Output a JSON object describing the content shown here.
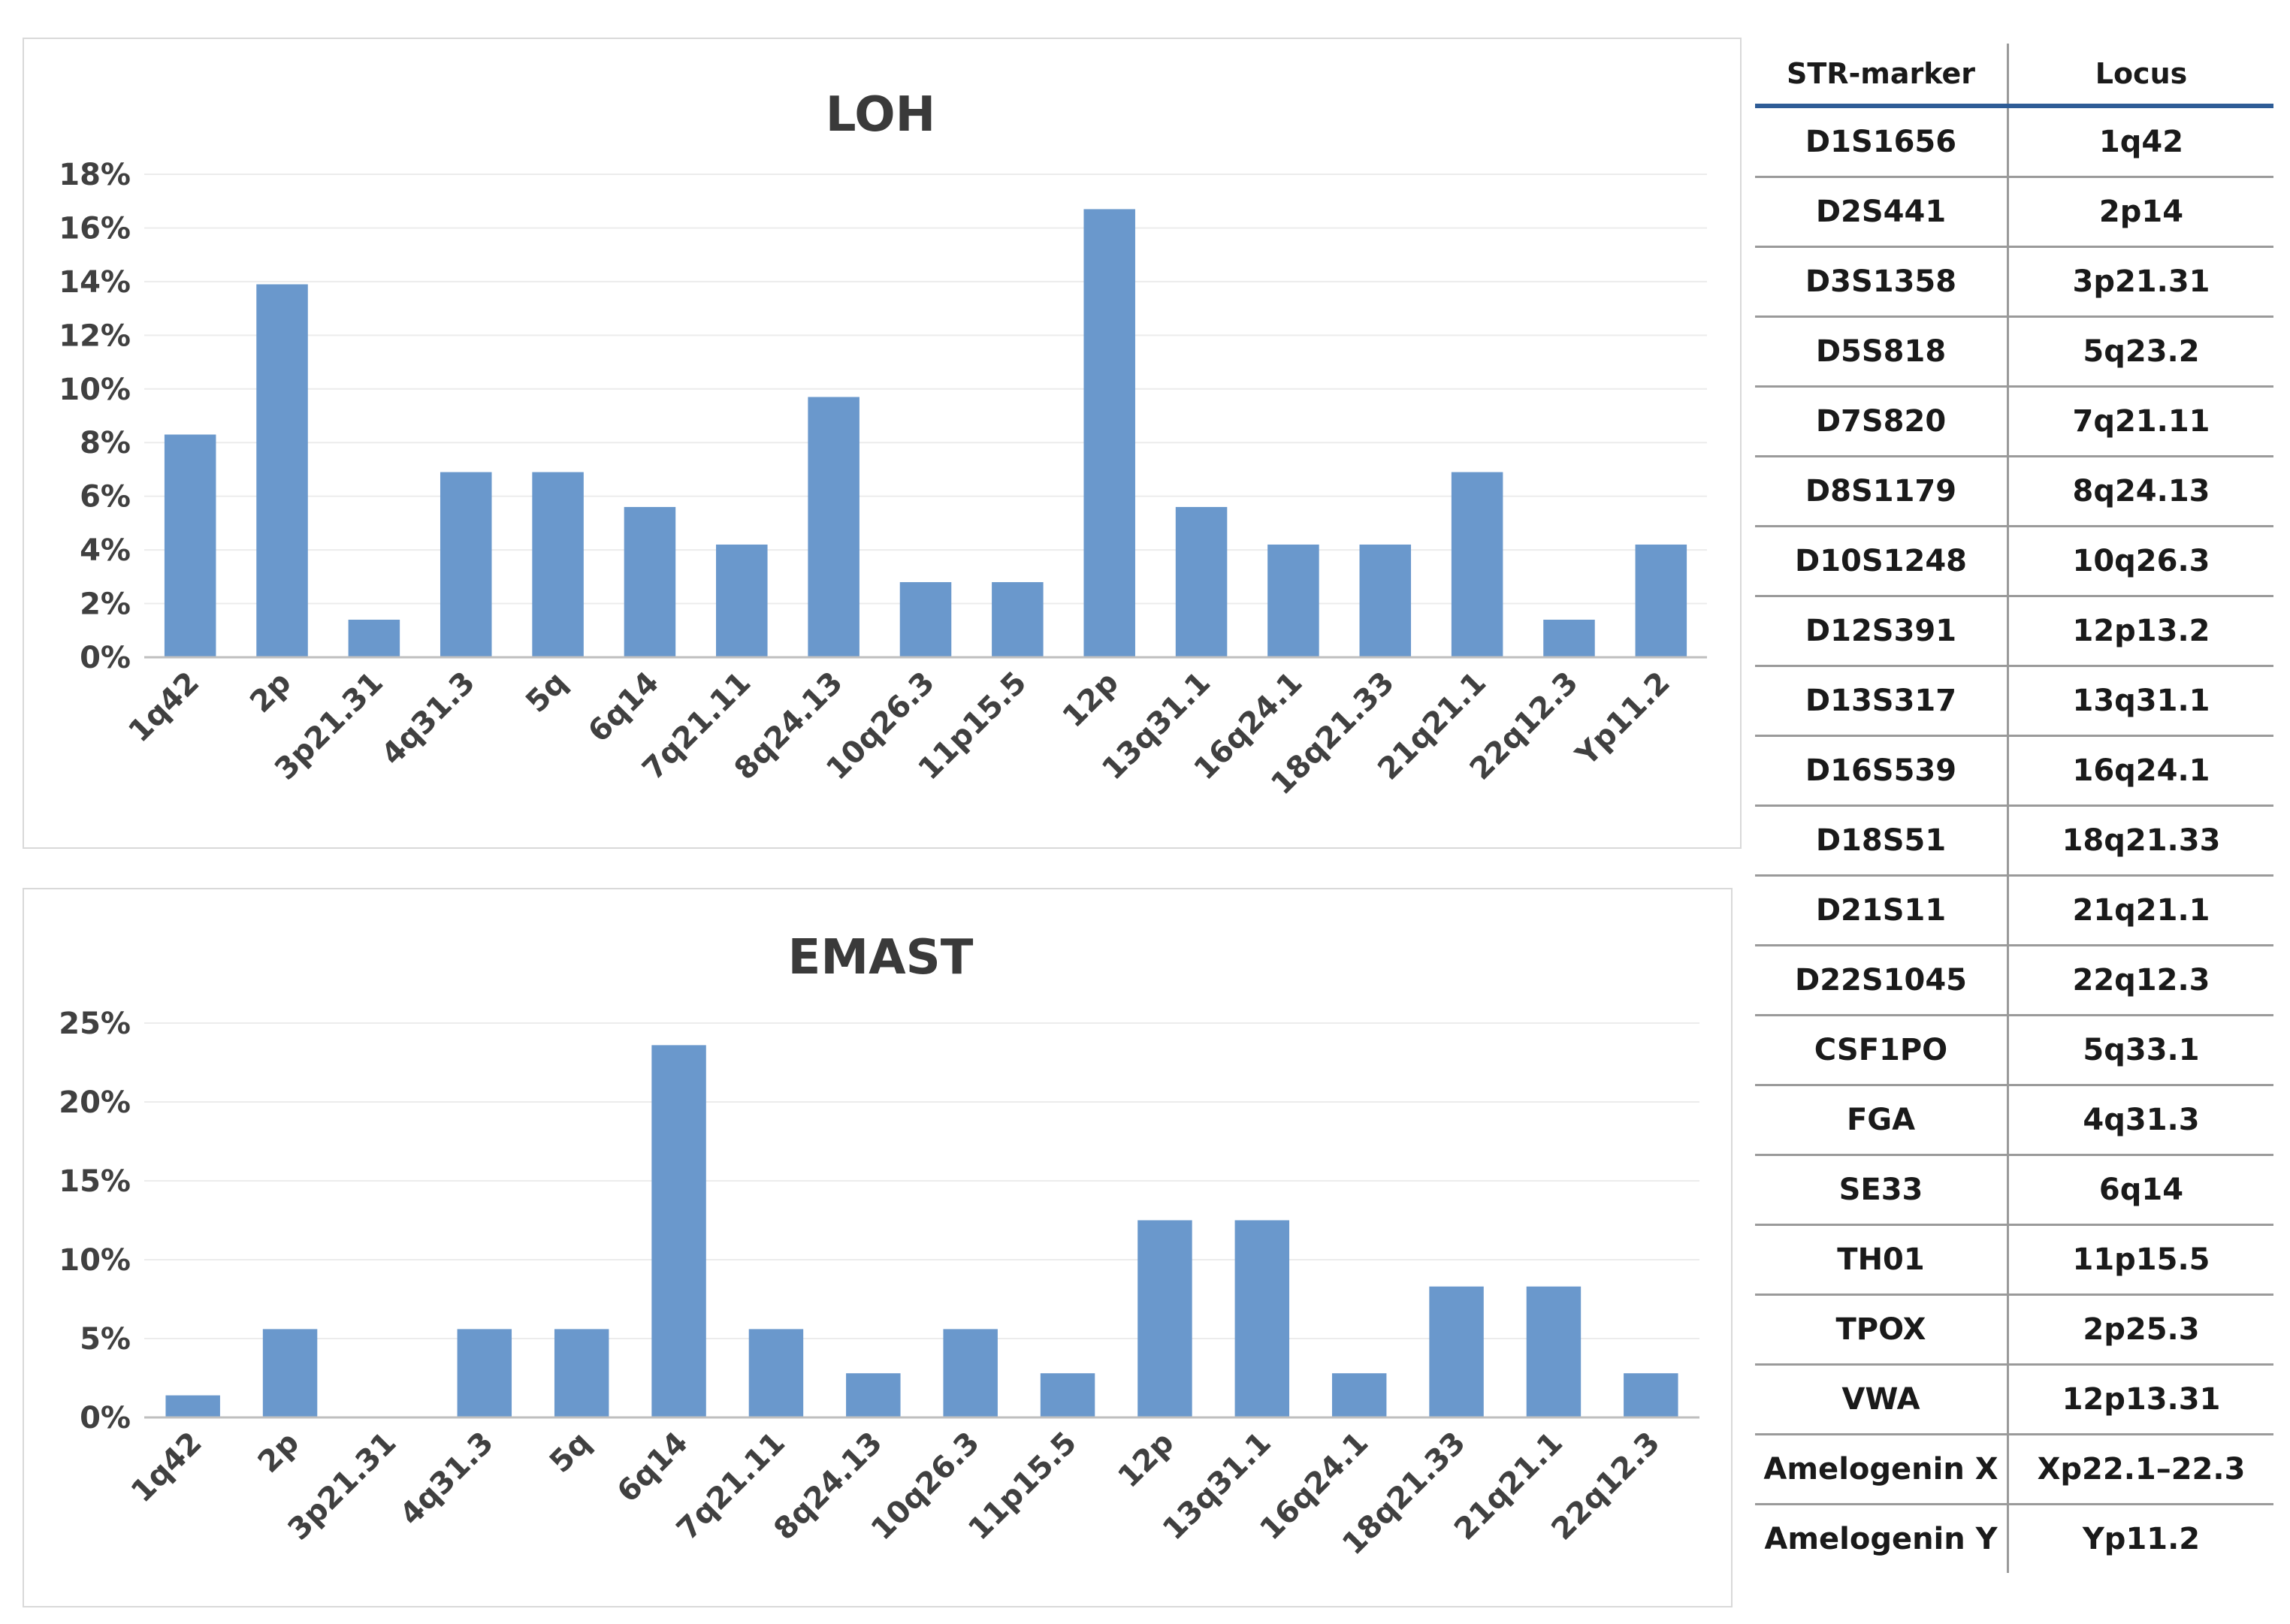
{
  "chart_data": [
    {
      "type": "bar",
      "title": "LOH",
      "xlabel": "",
      "ylabel": "",
      "ylim": [
        0,
        18
      ],
      "yticks": [
        0,
        2,
        4,
        6,
        8,
        10,
        12,
        14,
        16,
        18
      ],
      "ytick_labels": [
        "0%",
        "2%",
        "4%",
        "6%",
        "8%",
        "10%",
        "12%",
        "14%",
        "16%",
        "18%"
      ],
      "categories": [
        "1q42",
        "2p",
        "3p21.31",
        "4q31.3",
        "5q",
        "6q14",
        "7q21.11",
        "8q24.13",
        "10q26.3",
        "11p15.5",
        "12p",
        "13q31.1",
        "16q24.1",
        "18q21.33",
        "21q21.1",
        "22q12.3",
        "Yp11.2"
      ],
      "values": [
        8.3,
        13.9,
        1.4,
        6.9,
        6.9,
        5.6,
        4.2,
        9.7,
        2.8,
        2.8,
        16.7,
        5.6,
        4.2,
        4.2,
        6.9,
        1.4,
        4.2
      ],
      "unit": "%",
      "grid": true,
      "bar_color": "#6a98cc"
    },
    {
      "type": "bar",
      "title": "EMAST",
      "xlabel": "",
      "ylabel": "",
      "ylim": [
        0,
        25
      ],
      "yticks": [
        0,
        5,
        10,
        15,
        20,
        25
      ],
      "ytick_labels": [
        "0%",
        "5%",
        "10%",
        "15%",
        "20%",
        "25%"
      ],
      "categories": [
        "1q42",
        "2p",
        "3p21.31",
        "4q31.3",
        "5q",
        "6q14",
        "7q21.11",
        "8q24.13",
        "10q26.3",
        "11p15.5",
        "12p",
        "13q31.1",
        "16q24.1",
        "18q21.33",
        "21q21.1",
        "22q12.3"
      ],
      "values": [
        1.4,
        5.6,
        0,
        5.6,
        5.6,
        23.6,
        5.6,
        2.8,
        5.6,
        2.8,
        12.5,
        12.5,
        2.8,
        8.3,
        8.3,
        2.8
      ],
      "unit": "%",
      "grid": true,
      "bar_color": "#6a98cc"
    }
  ],
  "table": {
    "headers": [
      "STR-marker",
      "Locus"
    ],
    "rows": [
      [
        "D1S1656",
        "1q42"
      ],
      [
        "D2S441",
        "2p14"
      ],
      [
        "D3S1358",
        "3p21.31"
      ],
      [
        "D5S818",
        "5q23.2"
      ],
      [
        "D7S820",
        "7q21.11"
      ],
      [
        "D8S1179",
        "8q24.13"
      ],
      [
        "D10S1248",
        "10q26.3"
      ],
      [
        "D12S391",
        "12p13.2"
      ],
      [
        "D13S317",
        "13q31.1"
      ],
      [
        "D16S539",
        "16q24.1"
      ],
      [
        "D18S51",
        "18q21.33"
      ],
      [
        "D21S11",
        "21q21.1"
      ],
      [
        "D22S1045",
        "22q12.3"
      ],
      [
        "CSF1PO",
        "5q33.1"
      ],
      [
        "FGA",
        "4q31.3"
      ],
      [
        "SE33",
        "6q14"
      ],
      [
        "TH01",
        "11p15.5"
      ],
      [
        "TPOX",
        "2p25.3"
      ],
      [
        "VWA",
        "12p13.31"
      ],
      [
        "Amelogenin  X",
        "Xp22.1–22.3"
      ],
      [
        "Amelogenin Y",
        "Yp11.2"
      ]
    ]
  }
}
